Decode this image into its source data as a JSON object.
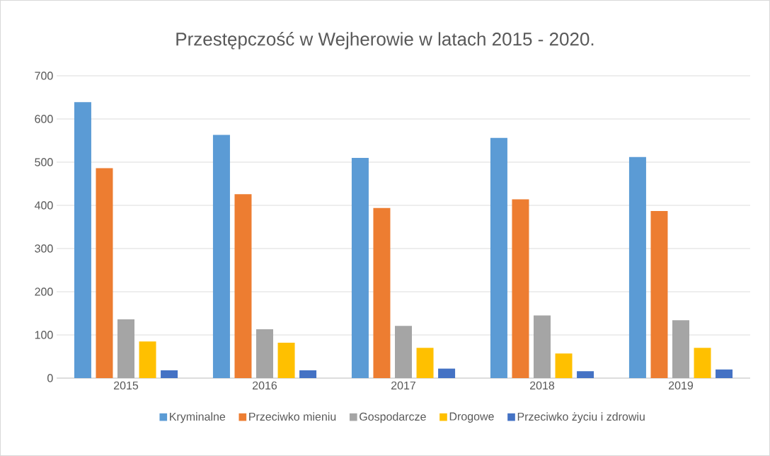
{
  "chart_data": {
    "type": "bar",
    "title": "Przestępczość w Wejherowie w latach 2015 - 2020.",
    "categories": [
      "2015",
      "2016",
      "2017",
      "2018",
      "2019"
    ],
    "series": [
      {
        "name": "Kryminalne",
        "color": "#5b9bd5",
        "values": [
          639,
          563,
          510,
          556,
          512
        ]
      },
      {
        "name": "Przeciwko mieniu",
        "color": "#ed7d31",
        "values": [
          486,
          426,
          394,
          414,
          387
        ]
      },
      {
        "name": "Gospodarcze",
        "color": "#a5a5a5",
        "values": [
          136,
          113,
          121,
          145,
          134
        ]
      },
      {
        "name": "Drogowe",
        "color": "#ffc000",
        "values": [
          85,
          82,
          70,
          57,
          70
        ]
      },
      {
        "name": "Przeciwko życiu i zdrowiu",
        "color": "#4472c4",
        "values": [
          18,
          18,
          22,
          16,
          20
        ]
      }
    ],
    "ylim": [
      0,
      700
    ],
    "yticks": [
      0,
      100,
      200,
      300,
      400,
      500,
      600,
      700
    ],
    "grid": "y",
    "legend": "bottom"
  }
}
